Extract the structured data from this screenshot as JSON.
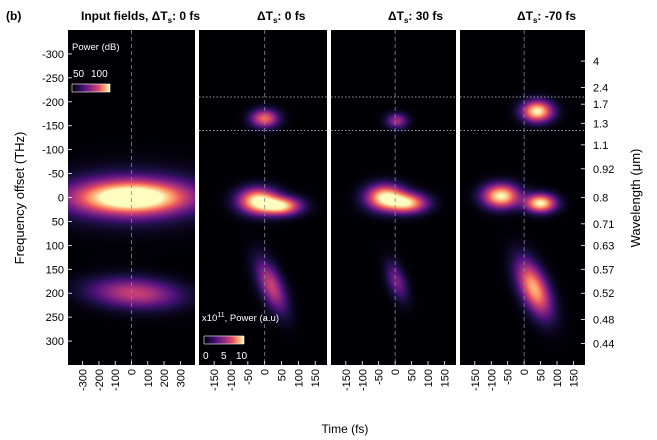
{
  "figure": {
    "panel_letter": "(b)",
    "panel_letter_color": "#8b1a2f",
    "xlabel": "Time (fs)",
    "ylabel_left": "Frequency offset (THz)",
    "ylabel_right": "Wavelength (μm)",
    "separator_color": "#ffffff",
    "background_color": "#000000"
  },
  "chart_data": [
    {
      "type": "heatmap",
      "title": "Input fields, ΔTs: 0 fs",
      "title_prefix": "Input fields, ΔT",
      "title_sub": "s",
      "title_suffix": ": 0 fs",
      "xlim": [
        -390,
        390
      ],
      "ylim": [
        350,
        -350
      ],
      "xticks": [
        -300,
        -200,
        -100,
        0,
        100,
        200,
        300
      ],
      "yticks": [
        -300,
        -250,
        -200,
        -150,
        -100,
        -50,
        0,
        50,
        100,
        150,
        200,
        250,
        300
      ],
      "colorbar": {
        "label": "Power (dB)",
        "ticks": [
          "50",
          "100"
        ],
        "min": 40,
        "max": 110
      },
      "blobs": [
        {
          "t": 0,
          "f": 0,
          "dt": 230,
          "df": 22,
          "level": 1.0
        },
        {
          "t": 0,
          "f": 0,
          "dt": 310,
          "df": 38,
          "level": 0.35
        },
        {
          "t": 20,
          "f": 200,
          "dt": 190,
          "df": 22,
          "level": 0.55,
          "tilt": 1.4
        }
      ]
    },
    {
      "type": "heatmap",
      "title": "ΔTs: 0 fs",
      "title_prefix": "ΔT",
      "title_sub": "s",
      "title_suffix": ": 0 fs",
      "xlim": [
        -195,
        185
      ],
      "ylim": [
        350,
        -350
      ],
      "xticks": [
        -150,
        -100,
        -50,
        0,
        50,
        100,
        150
      ],
      "guides_f": [
        -210,
        -140
      ],
      "colorbar": {
        "label_prefix": "x10",
        "label_sup": "11",
        "label_suffix": ", Power (a.u)",
        "ticks": [
          "0",
          "5",
          "10"
        ],
        "min": 0,
        "max": 10
      },
      "blobs": [
        {
          "t": -20,
          "f": 7,
          "dt": 40,
          "df": 18,
          "level": 1.0
        },
        {
          "t": 50,
          "f": 18,
          "dt": 40,
          "df": 13,
          "level": 0.9
        },
        {
          "t": 0,
          "f": -165,
          "dt": 28,
          "df": 13,
          "level": 0.7
        },
        {
          "t": 20,
          "f": 185,
          "dt": 25,
          "df": 38,
          "level": 0.55,
          "tilt": 0.5
        }
      ]
    },
    {
      "type": "heatmap",
      "title": "ΔTs: 30 fs",
      "title_prefix": "ΔT",
      "title_sub": "s",
      "title_suffix": ": 30 fs",
      "xlim": [
        -195,
        185
      ],
      "ylim": [
        350,
        -350
      ],
      "xticks": [
        -150,
        -100,
        -50,
        0,
        50,
        100,
        150
      ],
      "guides_f": [
        -210,
        -140
      ],
      "blobs": [
        {
          "t": -30,
          "f": 0,
          "dt": 40,
          "df": 18,
          "level": 1.0
        },
        {
          "t": 40,
          "f": 12,
          "dt": 40,
          "df": 14,
          "level": 0.85
        },
        {
          "t": 5,
          "f": -160,
          "dt": 22,
          "df": 11,
          "level": 0.45
        },
        {
          "t": 5,
          "f": 175,
          "dt": 20,
          "df": 28,
          "level": 0.35,
          "tilt": 0.4
        }
      ]
    },
    {
      "type": "heatmap",
      "title": "ΔTs: -70 fs",
      "title_prefix": "ΔT",
      "title_sub": "s",
      "title_suffix": ": -70 fs",
      "xlim": [
        -195,
        185
      ],
      "ylim": [
        350,
        -350
      ],
      "xticks": [
        -150,
        -100,
        -50,
        0,
        50,
        100,
        150
      ],
      "y2ticks": [
        {
          "f": -285,
          "label": "4"
        },
        {
          "f": -230,
          "label": "2.4"
        },
        {
          "f": -195,
          "label": "1.7"
        },
        {
          "f": -155,
          "label": "1.3"
        },
        {
          "f": -110,
          "label": "1.1"
        },
        {
          "f": -60,
          "label": "0.92"
        },
        {
          "f": 0,
          "label": "0.8"
        },
        {
          "f": 55,
          "label": "0.71"
        },
        {
          "f": 100,
          "label": "0.63"
        },
        {
          "f": 150,
          "label": "0.57"
        },
        {
          "f": 200,
          "label": "0.52"
        },
        {
          "f": 255,
          "label": "0.48"
        },
        {
          "f": 305,
          "label": "0.44"
        }
      ],
      "guides_f": [
        -210,
        -140
      ],
      "blobs": [
        {
          "t": -70,
          "f": -3,
          "dt": 38,
          "df": 17,
          "level": 1.0
        },
        {
          "t": 50,
          "f": 12,
          "dt": 32,
          "df": 13,
          "level": 1.0
        },
        {
          "t": 40,
          "f": -180,
          "dt": 32,
          "df": 15,
          "level": 1.0
        },
        {
          "t": 30,
          "f": 190,
          "dt": 30,
          "df": 40,
          "level": 0.85,
          "tilt": 0.5
        }
      ]
    }
  ]
}
